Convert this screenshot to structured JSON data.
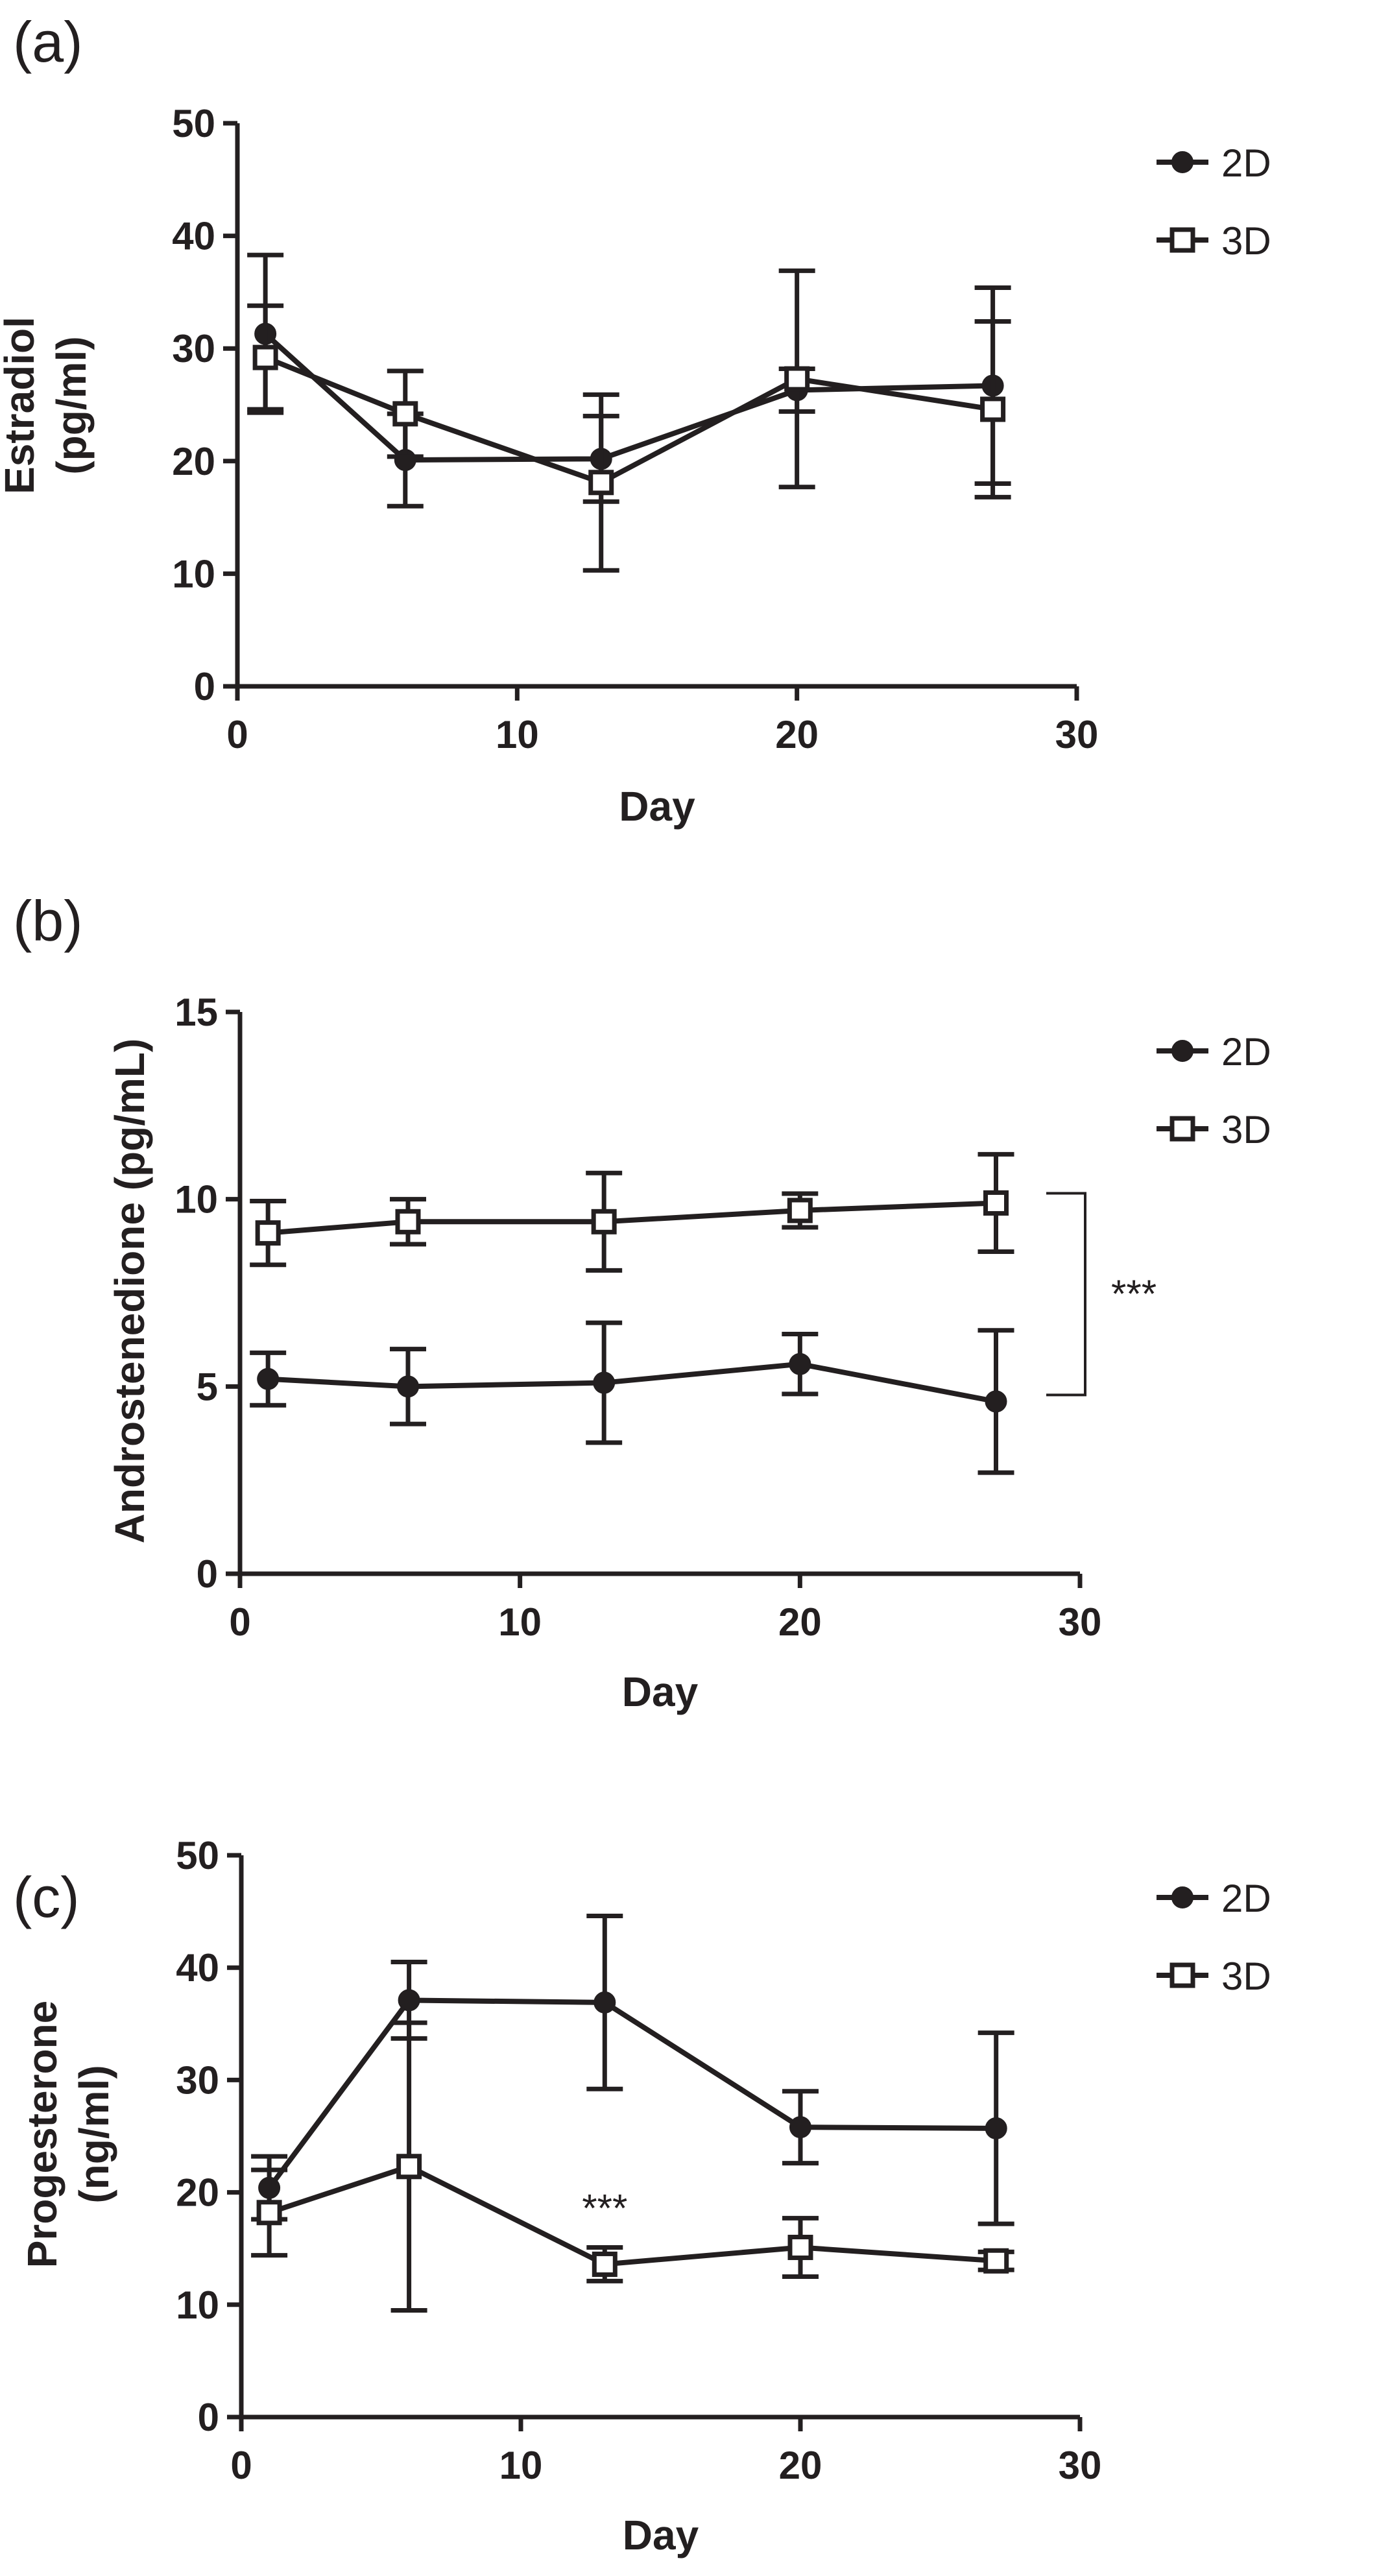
{
  "chart_data": [
    {
      "type": "line",
      "panel_label": "(a)",
      "xlabel": "Day",
      "ylabel_lines": [
        "Estradiol",
        "(pg/ml)"
      ],
      "xlim": [
        0,
        30
      ],
      "ylim": [
        0,
        50
      ],
      "xticks": [
        0,
        10,
        20,
        30
      ],
      "yticks": [
        0,
        10,
        20,
        30,
        40,
        50
      ],
      "x": [
        1,
        6,
        13,
        20,
        27
      ],
      "series": [
        {
          "name": "2D",
          "marker": "filled-circle",
          "values": [
            31.3,
            20.1,
            20.2,
            26.3,
            26.7
          ],
          "err": [
            7,
            4.1,
            3.8,
            1.9,
            8.7
          ]
        },
        {
          "name": "3D",
          "marker": "open-square",
          "values": [
            29.2,
            24.2,
            18.1,
            27.3,
            24.6
          ],
          "err": [
            4.6,
            3.8,
            7.8,
            9.6,
            7.8
          ]
        }
      ],
      "legend_position": "top-right",
      "annotations": []
    },
    {
      "type": "line",
      "panel_label": "(b)",
      "xlabel": "Day",
      "ylabel_lines": [
        "Androstenedione (pg/mL)"
      ],
      "xlim": [
        0,
        30
      ],
      "ylim": [
        0,
        15
      ],
      "xticks": [
        0,
        10,
        20,
        30
      ],
      "yticks": [
        0,
        5,
        10,
        15
      ],
      "x": [
        1,
        6,
        13,
        20,
        27
      ],
      "series": [
        {
          "name": "2D",
          "marker": "filled-circle",
          "values": [
            5.2,
            5.0,
            5.1,
            5.6,
            4.6
          ],
          "err": [
            0.7,
            1.0,
            1.6,
            0.8,
            1.9
          ]
        },
        {
          "name": "3D",
          "marker": "open-square",
          "values": [
            9.1,
            9.4,
            9.4,
            9.7,
            9.9
          ],
          "err": [
            0.85,
            0.6,
            1.3,
            0.45,
            1.3
          ]
        }
      ],
      "legend_position": "top-right",
      "annotations": [
        {
          "text": "***",
          "kind": "bracket"
        }
      ]
    },
    {
      "type": "line",
      "panel_label": "(c)",
      "xlabel": "Day",
      "ylabel_lines": [
        "Progesterone",
        "(ng/ml)"
      ],
      "xlim": [
        0,
        30
      ],
      "ylim": [
        0,
        50
      ],
      "xticks": [
        0,
        10,
        20,
        30
      ],
      "yticks": [
        0,
        10,
        20,
        30,
        40,
        50
      ],
      "x": [
        1,
        6,
        13,
        20,
        27
      ],
      "series": [
        {
          "name": "2D",
          "marker": "filled-circle",
          "values": [
            20.4,
            37.1,
            36.9,
            25.8,
            25.7
          ],
          "err": [
            2.8,
            3.4,
            7.7,
            3.2,
            8.5
          ]
        },
        {
          "name": "3D",
          "marker": "open-square",
          "values": [
            18.2,
            22.3,
            13.6,
            15.1,
            13.9
          ],
          "err": [
            3.8,
            12.8,
            1.5,
            2.6,
            0.8
          ]
        }
      ],
      "legend_position": "top-right",
      "annotations": [
        {
          "text": "***",
          "kind": "point",
          "series": "3D",
          "x": 13
        }
      ]
    }
  ]
}
